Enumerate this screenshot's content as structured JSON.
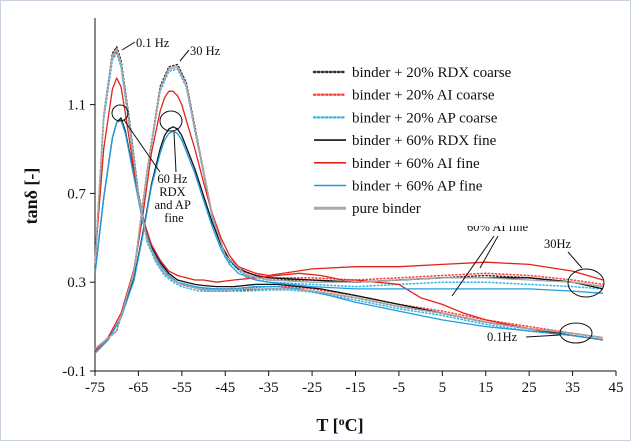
{
  "chart_data": {
    "type": "line",
    "title": "",
    "xlabel": "T [",
    "xlabel_sup": "o",
    "xlabel_end": "C]",
    "ylabel": "tanδ [-]",
    "xlim": [
      -75,
      45
    ],
    "ylim": [
      -0.1,
      1.4
    ],
    "xticks": [
      -75,
      -65,
      -55,
      -45,
      -35,
      -25,
      -15,
      -5,
      5,
      15,
      25,
      35,
      45
    ],
    "yticks": [
      -0.1,
      0.3,
      0.7,
      1.1
    ],
    "grid": false,
    "legend_position": "top-right",
    "series": [
      {
        "name": "binder + 20% RDX coarse",
        "color": "#333333",
        "style": "dotted",
        "frequencies": [
          {
            "freq": "0.1 Hz",
            "x": [
              -75,
              -73,
              -71,
              -70,
              -69,
              -67,
              -65,
              -63,
              -61,
              -59,
              -57,
              -55,
              -53,
              -51,
              -49,
              -45,
              -40,
              -35,
              -30,
              -25,
              -15,
              -5,
              5,
              15,
              25,
              35,
              42
            ],
            "y": [
              0.38,
              1.05,
              1.33,
              1.36,
              1.3,
              1.02,
              0.7,
              0.5,
              0.4,
              0.34,
              0.31,
              0.29,
              0.28,
              0.27,
              0.26,
              0.26,
              0.265,
              0.27,
              0.27,
              0.26,
              0.23,
              0.19,
              0.16,
              0.12,
              0.09,
              0.07,
              0.05
            ]
          },
          {
            "freq": "30 Hz",
            "x": [
              -75,
              -70,
              -66,
              -63,
              -60,
              -58,
              -56,
              -54,
              -52,
              -50,
              -48,
              -45,
              -40,
              -35,
              -25,
              -15,
              -5,
              5,
              15,
              25,
              35,
              42
            ],
            "y": [
              0.0,
              0.08,
              0.35,
              0.8,
              1.18,
              1.27,
              1.28,
              1.2,
              1.0,
              0.8,
              0.6,
              0.42,
              0.33,
              0.31,
              0.31,
              0.3,
              0.31,
              0.32,
              0.33,
              0.32,
              0.3,
              0.28
            ]
          }
        ]
      },
      {
        "name": "binder + 20% AI coarse",
        "color": "#ff4444",
        "style": "dotted",
        "frequencies": [
          {
            "freq": "0.1 Hz",
            "x": [
              -75,
              -73,
              -71,
              -70,
              -69,
              -67,
              -65,
              -63,
              -61,
              -59,
              -57,
              -55,
              -53,
              -51,
              -49,
              -45,
              -40,
              -35,
              -30,
              -25,
              -15,
              -5,
              5,
              15,
              25,
              35,
              42
            ],
            "y": [
              0.38,
              1.04,
              1.31,
              1.34,
              1.28,
              1.0,
              0.68,
              0.49,
              0.4,
              0.34,
              0.31,
              0.29,
              0.28,
              0.27,
              0.27,
              0.27,
              0.275,
              0.28,
              0.28,
              0.27,
              0.24,
              0.2,
              0.17,
              0.13,
              0.1,
              0.07,
              0.05
            ]
          },
          {
            "freq": "30 Hz",
            "x": [
              -75,
              -70,
              -66,
              -63,
              -60,
              -58,
              -56,
              -54,
              -52,
              -50,
              -48,
              -45,
              -40,
              -35,
              -25,
              -15,
              -5,
              5,
              15,
              25,
              35,
              42
            ],
            "y": [
              0.0,
              0.08,
              0.35,
              0.8,
              1.17,
              1.26,
              1.27,
              1.19,
              0.99,
              0.8,
              0.6,
              0.42,
              0.34,
              0.32,
              0.32,
              0.31,
              0.32,
              0.33,
              0.34,
              0.33,
              0.31,
              0.29
            ]
          }
        ]
      },
      {
        "name": "binder + 20% AP coarse",
        "color": "#3bb8e6",
        "style": "dotted",
        "frequencies": [
          {
            "freq": "0.1 Hz",
            "x": [
              -75,
              -73,
              -71,
              -70,
              -69,
              -67,
              -65,
              -63,
              -61,
              -59,
              -57,
              -55,
              -53,
              -51,
              -49,
              -45,
              -40,
              -35,
              -30,
              -25,
              -15,
              -5,
              5,
              15,
              25,
              35,
              42
            ],
            "y": [
              0.38,
              1.03,
              1.3,
              1.33,
              1.27,
              0.99,
              0.68,
              0.48,
              0.39,
              0.33,
              0.3,
              0.28,
              0.27,
              0.26,
              0.26,
              0.26,
              0.26,
              0.265,
              0.265,
              0.255,
              0.22,
              0.18,
              0.15,
              0.11,
              0.08,
              0.06,
              0.04
            ]
          },
          {
            "freq": "30 Hz",
            "x": [
              -75,
              -70,
              -66,
              -63,
              -60,
              -58,
              -56,
              -54,
              -52,
              -50,
              -48,
              -45,
              -40,
              -35,
              -25,
              -15,
              -5,
              5,
              15,
              25,
              35,
              42
            ],
            "y": [
              0.0,
              0.08,
              0.35,
              0.79,
              1.16,
              1.25,
              1.26,
              1.18,
              0.98,
              0.79,
              0.59,
              0.41,
              0.32,
              0.3,
              0.29,
              0.28,
              0.29,
              0.3,
              0.3,
              0.29,
              0.28,
              0.27
            ]
          }
        ]
      },
      {
        "name": "binder + 60% RDX fine",
        "color": "#111111",
        "style": "solid",
        "frequencies": [
          {
            "freq": "0.1 Hz",
            "x": [
              -75,
              -73,
              -71,
              -70,
              -69,
              -68,
              -66,
              -64,
              -62,
              -60,
              -58,
              -56,
              -54,
              -52,
              -50,
              -47,
              -43,
              -38,
              -33,
              -28,
              -23,
              -15,
              -5,
              5,
              15,
              25,
              35,
              42
            ],
            "y": [
              0.34,
              0.68,
              0.95,
              1.02,
              1.04,
              0.98,
              0.78,
              0.58,
              0.46,
              0.39,
              0.34,
              0.31,
              0.3,
              0.29,
              0.285,
              0.28,
              0.28,
              0.29,
              0.29,
              0.28,
              0.27,
              0.24,
              0.2,
              0.16,
              0.12,
              0.09,
              0.06,
              0.04
            ]
          },
          {
            "freq": "30 Hz",
            "x": [
              -75,
              -72,
              -69,
              -66,
              -64,
              -62,
              -60,
              -59,
              -58,
              -57,
              -56,
              -55,
              -54,
              -52,
              -50,
              -48,
              -46,
              -44,
              -42,
              -38,
              -35,
              -25,
              -15,
              -5,
              5,
              15,
              25,
              35,
              42
            ],
            "y": [
              -0.02,
              0.04,
              0.14,
              0.32,
              0.52,
              0.74,
              0.9,
              0.96,
              0.99,
              1.0,
              0.99,
              0.96,
              0.91,
              0.81,
              0.69,
              0.57,
              0.47,
              0.4,
              0.36,
              0.33,
              0.32,
              0.31,
              0.3,
              0.31,
              0.32,
              0.32,
              0.32,
              0.3,
              0.27
            ]
          }
        ]
      },
      {
        "name": "binder + 60% AI fine",
        "color": "#e8201a",
        "style": "solid",
        "frequencies": [
          {
            "freq": "0.1 Hz",
            "x": [
              -75,
              -73,
              -71,
              -70,
              -69,
              -68,
              -66,
              -64,
              -62,
              -60,
              -58,
              -56,
              -54,
              -52,
              -50,
              -47,
              -43,
              -38,
              -33,
              -28,
              -23,
              -18,
              -15,
              -10,
              -5,
              0,
              5,
              10,
              15,
              20,
              25,
              30,
              35,
              42
            ],
            "y": [
              0.4,
              0.9,
              1.17,
              1.22,
              1.18,
              1.06,
              0.8,
              0.59,
              0.47,
              0.4,
              0.35,
              0.33,
              0.32,
              0.31,
              0.31,
              0.3,
              0.31,
              0.32,
              0.33,
              0.34,
              0.33,
              0.31,
              0.31,
              0.3,
              0.29,
              0.23,
              0.2,
              0.16,
              0.13,
              0.11,
              0.09,
              0.07,
              0.06,
              0.04
            ]
          },
          {
            "freq": "30 Hz",
            "x": [
              -75,
              -72,
              -69,
              -66,
              -64,
              -62,
              -60,
              -59,
              -58,
              -57,
              -56,
              -55,
              -54,
              -52,
              -50,
              -48,
              -46,
              -44,
              -42,
              -38,
              -35,
              -25,
              -15,
              -5,
              5,
              15,
              25,
              35,
              42
            ],
            "y": [
              -0.01,
              0.05,
              0.16,
              0.36,
              0.6,
              0.88,
              1.07,
              1.13,
              1.16,
              1.16,
              1.14,
              1.1,
              1.03,
              0.9,
              0.75,
              0.61,
              0.5,
              0.42,
              0.37,
              0.34,
              0.33,
              0.36,
              0.37,
              0.37,
              0.38,
              0.39,
              0.38,
              0.35,
              0.31
            ]
          }
        ]
      },
      {
        "name": "binder + 60% AP fine",
        "color": "#1e9de0",
        "style": "solid",
        "frequencies": [
          {
            "freq": "0.1 Hz",
            "x": [
              -75,
              -73,
              -71,
              -70,
              -69,
              -68,
              -66,
              -64,
              -62,
              -60,
              -58,
              -56,
              -54,
              -52,
              -50,
              -47,
              -43,
              -38,
              -33,
              -28,
              -23,
              -15,
              -5,
              5,
              15,
              25,
              35,
              42
            ],
            "y": [
              0.34,
              0.68,
              0.95,
              1.02,
              1.03,
              0.97,
              0.77,
              0.57,
              0.45,
              0.38,
              0.33,
              0.3,
              0.29,
              0.28,
              0.275,
              0.27,
              0.27,
              0.28,
              0.28,
              0.27,
              0.25,
              0.21,
              0.17,
              0.13,
              0.1,
              0.08,
              0.06,
              0.04
            ]
          },
          {
            "freq": "30 Hz",
            "x": [
              -75,
              -72,
              -69,
              -66,
              -64,
              -62,
              -60,
              -59,
              -58,
              -57,
              -56,
              -55,
              -54,
              -52,
              -50,
              -48,
              -46,
              -44,
              -42,
              -38,
              -35,
              -25,
              -15,
              -5,
              5,
              15,
              25,
              35,
              42
            ],
            "y": [
              -0.02,
              0.04,
              0.14,
              0.31,
              0.51,
              0.73,
              0.88,
              0.94,
              0.97,
              0.98,
              0.97,
              0.94,
              0.89,
              0.79,
              0.67,
              0.55,
              0.45,
              0.38,
              0.34,
              0.31,
              0.3,
              0.28,
              0.27,
              0.27,
              0.27,
              0.27,
              0.27,
              0.26,
              0.25
            ]
          }
        ]
      },
      {
        "name": "pure binder",
        "color": "#a8a8a8",
        "style": "solid",
        "frequencies": [
          {
            "freq": "0.1 Hz",
            "x": [
              -75,
              -73,
              -71,
              -70,
              -69,
              -67,
              -65,
              -63,
              -61,
              -59,
              -57,
              -55,
              -53,
              -51,
              -49,
              -45,
              -40,
              -35,
              -30,
              -25,
              -15,
              -5,
              5,
              15,
              25,
              35,
              42
            ],
            "y": [
              0.38,
              1.05,
              1.32,
              1.35,
              1.29,
              1.01,
              0.69,
              0.49,
              0.4,
              0.34,
              0.31,
              0.29,
              0.28,
              0.27,
              0.265,
              0.265,
              0.27,
              0.27,
              0.27,
              0.26,
              0.23,
              0.19,
              0.16,
              0.12,
              0.09,
              0.07,
              0.05
            ]
          },
          {
            "freq": "30 Hz",
            "x": [
              -75,
              -70,
              -66,
              -63,
              -60,
              -58,
              -56,
              -54,
              -52,
              -50,
              -48,
              -45,
              -40,
              -35,
              -25,
              -15,
              -5,
              5,
              15,
              25,
              35,
              42
            ],
            "y": [
              0.0,
              0.08,
              0.35,
              0.8,
              1.17,
              1.26,
              1.27,
              1.19,
              0.99,
              0.8,
              0.6,
              0.42,
              0.33,
              0.31,
              0.3,
              0.3,
              0.31,
              0.32,
              0.32,
              0.31,
              0.3,
              0.28
            ]
          }
        ]
      }
    ],
    "annotations": [
      {
        "id": "hz01",
        "lines": [
          "0.1 Hz"
        ]
      },
      {
        "id": "hz30",
        "lines": [
          "30 Hz"
        ]
      },
      {
        "id": "hz60",
        "lines": [
          "60 Hz",
          "RDX",
          "and AP",
          "fine"
        ]
      },
      {
        "id": "ai60",
        "lines": [
          "60% AI fine"
        ]
      },
      {
        "id": "hz30r",
        "lines": [
          "30Hz"
        ]
      },
      {
        "id": "hz01r",
        "lines": [
          "0.1Hz"
        ]
      }
    ]
  }
}
